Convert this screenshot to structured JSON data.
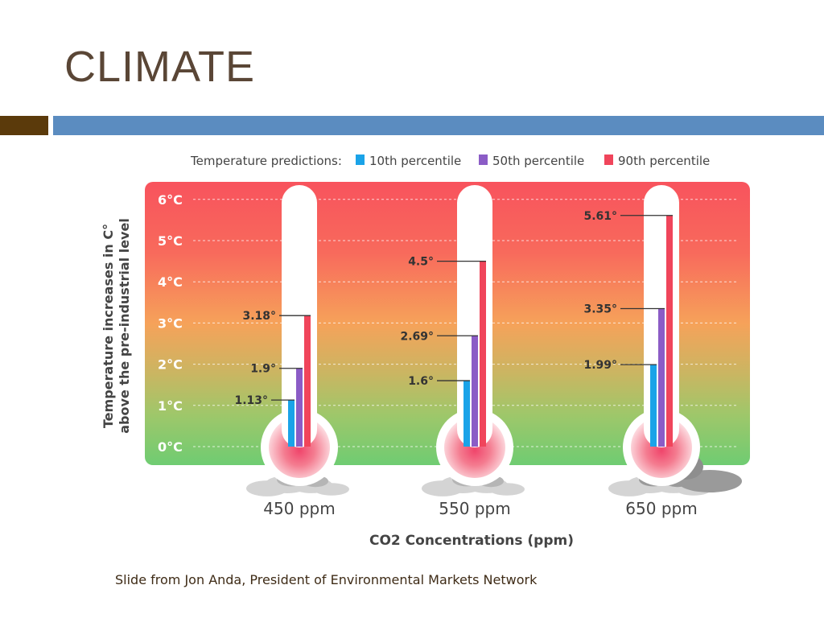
{
  "slide": {
    "title": "CLIMATE",
    "caption": "Slide from Jon Anda, President of Environmental Markets Network"
  },
  "colors": {
    "title": "#5a4636",
    "accent_dark": "#5b3a0b",
    "accent_blue": "#5b8cc0",
    "p10": "#1aa3e8",
    "p50": "#8b5cc6",
    "p90": "#f0455b"
  },
  "chart_data": {
    "type": "bar",
    "title": "Temperature predictions:",
    "legend": [
      {
        "key": "p10",
        "label": "10th percentile"
      },
      {
        "key": "p50",
        "label": "50th percentile"
      },
      {
        "key": "p90",
        "label": "90th percentile"
      }
    ],
    "ylabel_line1": "Temperature increases in C°",
    "ylabel_line2": "above the pre-industrial level",
    "xlabel": "CO2 Concentrations (ppm)",
    "ylim": [
      0,
      6
    ],
    "yticks": [
      "0°C",
      "1°C",
      "2°C",
      "3°C",
      "4°C",
      "5°C",
      "6°C"
    ],
    "categories": [
      "450 ppm",
      "550 ppm",
      "650 ppm"
    ],
    "series": [
      {
        "name": "10th percentile",
        "key": "p10",
        "values": [
          1.13,
          1.6,
          1.99
        ],
        "labels": [
          "1.13°",
          "1.6°",
          "1.99°"
        ]
      },
      {
        "name": "50th percentile",
        "key": "p50",
        "values": [
          1.9,
          2.69,
          3.35
        ],
        "labels": [
          "1.9°",
          "2.69°",
          "3.35°"
        ]
      },
      {
        "name": "90th percentile",
        "key": "p90",
        "values": [
          3.18,
          4.5,
          5.61
        ],
        "labels": [
          "3.18°",
          "4.5°",
          "5.61°"
        ]
      }
    ]
  }
}
